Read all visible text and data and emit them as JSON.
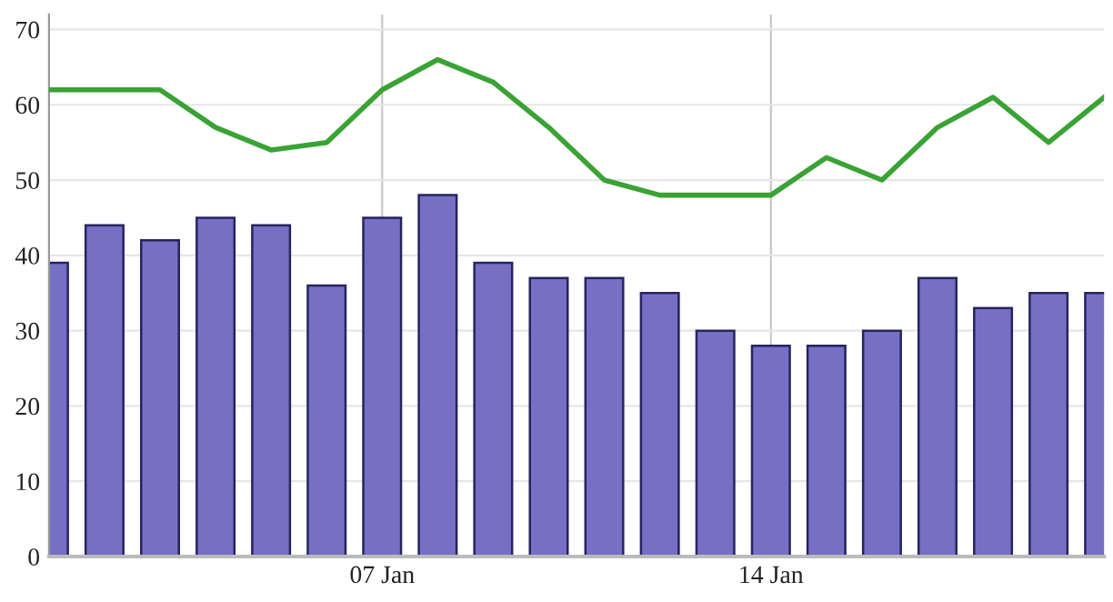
{
  "chart_data": {
    "type": "bar",
    "x": [
      "--01-01",
      "--01-02",
      "--01-03",
      "--01-04",
      "--01-05",
      "--01-06",
      "--01-07",
      "--01-08",
      "--01-09",
      "--01-10",
      "--01-11",
      "--01-12",
      "--01-13",
      "--01-14",
      "--01-15",
      "--01-16",
      "--01-17",
      "--01-18",
      "--01-19",
      "--01-20"
    ],
    "series": [
      {
        "color": "#7570c4",
        "values": [
          39,
          44,
          42,
          45,
          44,
          36,
          45,
          48,
          39,
          37,
          37,
          35,
          30,
          28,
          28,
          30,
          37,
          33,
          35,
          35
        ]
      },
      {
        "type": "line",
        "color": "#3aa335",
        "values": [
          62,
          62,
          62,
          57,
          54,
          55,
          62,
          66,
          63,
          57,
          50,
          48,
          48,
          48,
          53,
          50,
          57,
          61,
          55,
          61
        ]
      }
    ],
    "xlim": [
      "--01-01",
      "--01-20"
    ],
    "xticks": [
      {
        "value": "--01-07",
        "label": "07 Jan"
      },
      {
        "value": "--01-14",
        "label": "14 Jan"
      }
    ],
    "ylim": [
      0,
      72
    ],
    "yticks": [
      0,
      10,
      20,
      30,
      40,
      50,
      60,
      70
    ],
    "grid": true,
    "marker": "none",
    "line_style": "solid",
    "legend": false
  }
}
